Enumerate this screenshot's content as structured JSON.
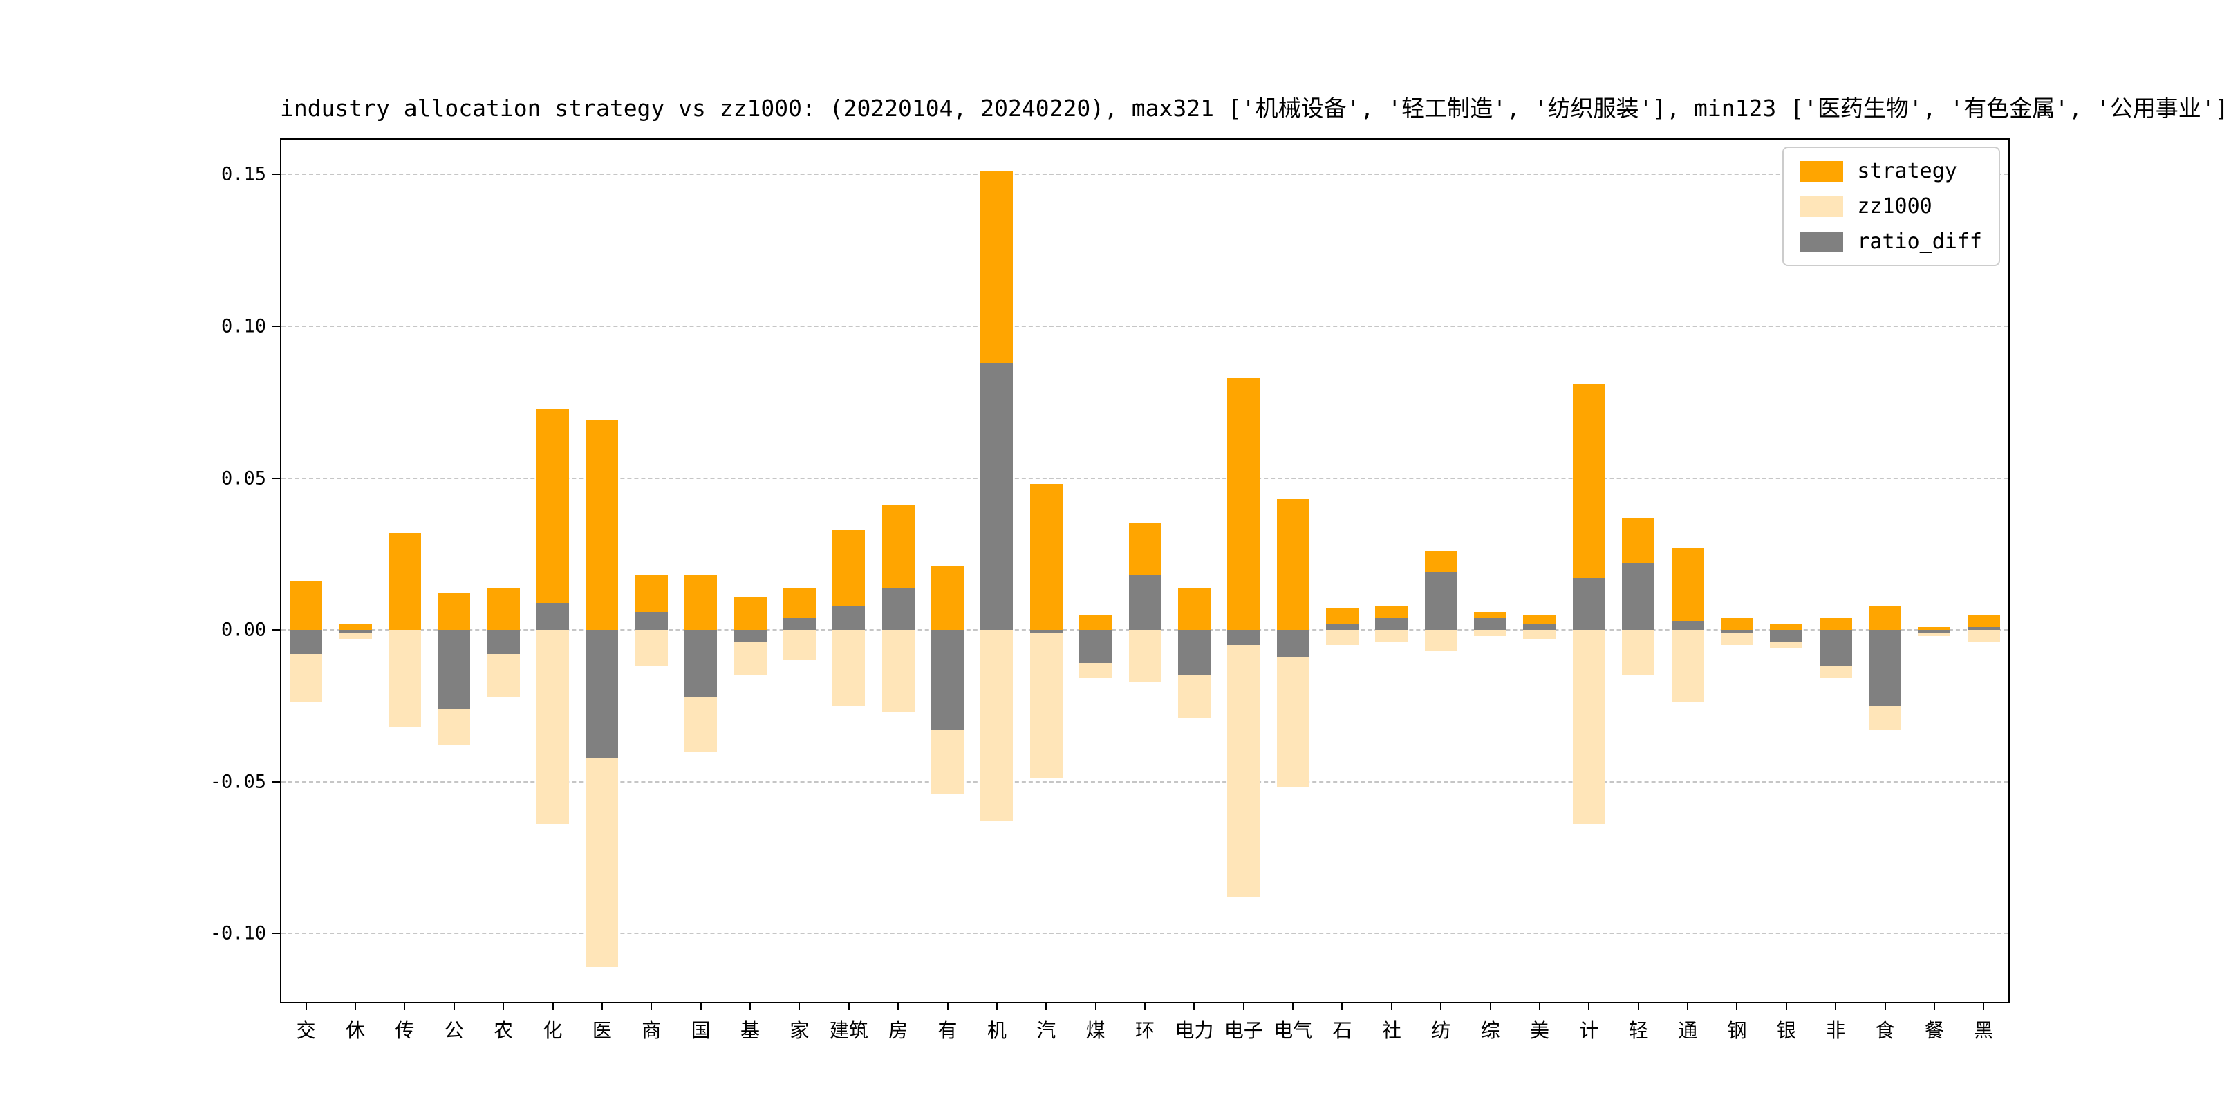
{
  "chart_data": {
    "type": "bar",
    "title": "industry allocation strategy vs zz1000: (20220104, 20240220), max321 ['机械设备', '轻工制造', '纺织服装'], min123 ['医药生物', '有色金属', '公用事业']",
    "categories": [
      "交",
      "休",
      "传",
      "公",
      "农",
      "化",
      "医",
      "商",
      "国",
      "基",
      "家",
      "建筑",
      "房",
      "有",
      "机",
      "汽",
      "煤",
      "环",
      "电力",
      "电子",
      "电气",
      "石",
      "社",
      "纺",
      "综",
      "美",
      "计",
      "轻",
      "通",
      "钢",
      "银",
      "非",
      "食",
      "餐",
      "黑"
    ],
    "series": [
      {
        "name": "strategy",
        "color": "#ffa500",
        "values": [
          0.016,
          0.002,
          0.032,
          0.012,
          0.014,
          0.073,
          0.069,
          0.018,
          0.018,
          0.011,
          0.014,
          0.033,
          0.041,
          0.021,
          0.151,
          0.048,
          0.005,
          0.035,
          0.014,
          0.083,
          0.043,
          0.007,
          0.008,
          0.026,
          0.006,
          0.005,
          0.081,
          0.037,
          0.027,
          0.004,
          0.002,
          0.004,
          0.008,
          0.001,
          0.005
        ]
      },
      {
        "name": "zz1000",
        "color": "#ffe5b8",
        "values": [
          -0.024,
          -0.003,
          -0.032,
          -0.038,
          -0.022,
          -0.064,
          -0.111,
          -0.012,
          -0.04,
          -0.015,
          -0.01,
          -0.025,
          -0.027,
          -0.054,
          -0.063,
          -0.049,
          -0.016,
          -0.017,
          -0.029,
          -0.088,
          -0.052,
          -0.005,
          -0.004,
          -0.007,
          -0.002,
          -0.003,
          -0.064,
          -0.015,
          -0.024,
          -0.005,
          -0.006,
          -0.016,
          -0.033,
          -0.002,
          -0.004
        ]
      },
      {
        "name": "ratio_diff",
        "color": "#808080",
        "values": [
          -0.008,
          -0.001,
          0.0,
          -0.026,
          -0.008,
          0.009,
          -0.042,
          0.006,
          -0.022,
          -0.004,
          0.004,
          0.008,
          0.014,
          -0.033,
          0.088,
          -0.001,
          -0.011,
          0.018,
          -0.015,
          -0.005,
          -0.009,
          0.002,
          0.004,
          0.019,
          0.004,
          0.002,
          0.017,
          0.022,
          0.003,
          -0.001,
          -0.004,
          -0.012,
          -0.025,
          -0.001,
          0.001
        ]
      }
    ],
    "yticks": [
      0.15,
      0.1,
      0.05,
      0.0,
      -0.05,
      -0.1
    ],
    "ylim": [
      -0.1225,
      0.1615
    ],
    "grid": "horizontal-dashed",
    "legend_position": "upper-right",
    "xlabel": "",
    "ylabel": ""
  }
}
